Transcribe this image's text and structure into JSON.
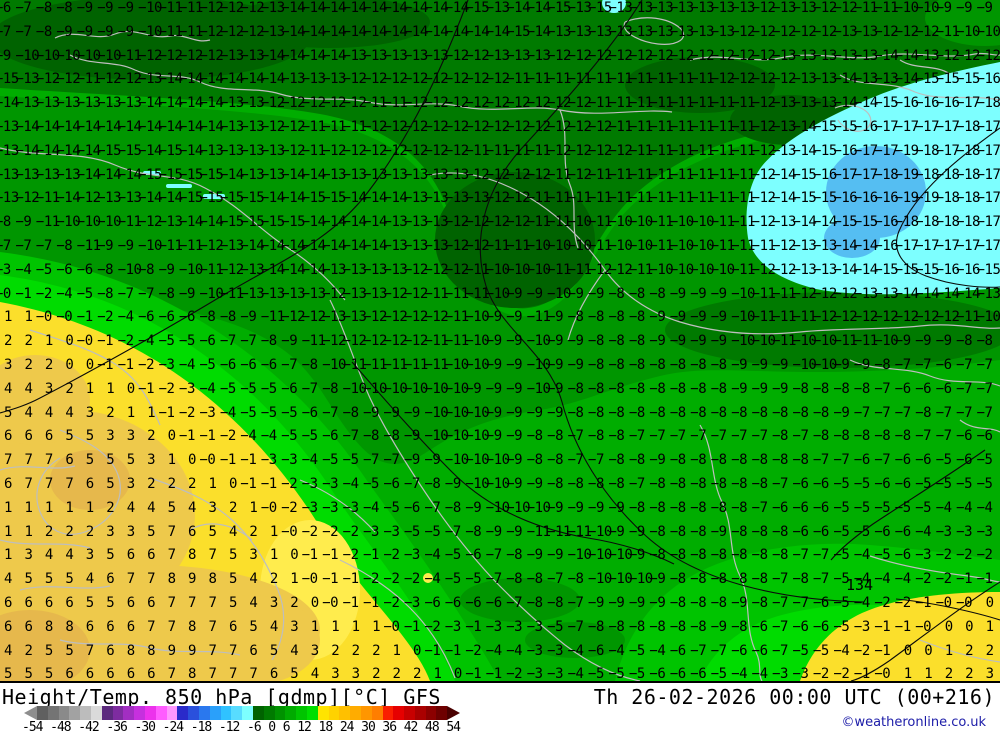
{
  "map": {
    "contour_label": "134",
    "palette": {
      "green_base": "#00AD00",
      "green_mid": "#009600",
      "green_dark": "#007A00",
      "green_darkest": "#006300",
      "green_bright": "#00C400",
      "green_brighter": "#00DC00",
      "yellow": "#FBDF2B",
      "yellow_bright": "#FFEC4D",
      "yellow_deep": "#EEC94B",
      "gold_deep": "#E6B84C",
      "cyan": "#7DFFFF",
      "blue_light": "#55BEF2",
      "border_gray": "#BEBEBE",
      "contour_black": "#0A0A0A"
    },
    "temperature_grid_rows": [
      "-6 -7 -8 -8 -9 -9 -9 -10 -11 -11 -12 -12 -12 -13 -14 -14 -14 -14 -14 -14 -14 -14 -14 -15 -13 -14 -14 -15 -13 -15 -13 -13 -13 -13 -13 -13 -13 -12 -13 -13 -12 -12 -11 -11 -10 -10 -9 -9 -9",
      "-7 -7 -8 -9 -9 -9 -9 -10 -11 -11 -12 -12 -12 -13 -14 -14 -14 -14 -14 -14 -14 -14 -14 -14 -14 -15 -14 -13 -13 -13 -13 -13 -13 -13 -13 -13 -12 -12 -12 -12 -12 -13 -13 -12 -12 -12 -11 -10 -10",
      "-9 -10 -10 -10 -10 -10 -11 -12 -12 -12 -12 -13 -13 -14 -14 -14 -14 -13 -13 -13 -13 -13 -12 -12 -13 -13 -13 -12 -12 -12 -12 -12 -12 -12 -12 -12 -12 -12 -13 -13 -13 -13 -13 -14 -14 -13 -12 -12 -12",
      "-15 -13 -12 -12 -11 -12 -12 -13 -14 -14 -14 -14 -14 -14 -13 -13 -13 -12 -12 -12 -12 -12 -12 -12 -12 -11 -11 -11 -11 -11 -11 -11 -11 -11 -11 -12 -12 -12 -12 -13 -13 -14 -13 -13 -14 -15 -15 -15 -16",
      "-14 -13 -13 -13 -13 -13 -13 -14 -14 -14 -14 -13 -13 -12 -12 -12 -12 -12 -11 -11 -12 -12 -12 -12 -12 -12 -12 -12 -12 -11 -11 -11 -11 -11 -11 -11 -11 -12 -13 -13 -13 -14 -14 -15 -16 -16 -16 -17 -18",
      "-13 -14 -14 -14 -14 -14 -14 -14 -14 -14 -14 -13 -13 -12 -12 -11 -11 -11 -12 -12 -12 -12 -12 -12 -12 -12 -12 -12 -12 -12 -11 -11 -11 -11 -11 -11 -11 -12 -13 -14 -15 -15 -16 -17 -17 -17 -17 -18 -17",
      "-13 -14 -14 -14 -14 -15 -15 -14 -15 -14 -13 -13 -13 -13 -12 -11 -12 -12 -12 -12 -12 -12 -12 -11 -11 -11 -11 -12 -12 -12 -12 -11 -11 -11 -11 -11 -11 -12 -13 -14 -15 -16 -17 -17 -19 -18 -17 -18 -17",
      "-13 -13 -13 -13 -14 -14 -14 -15 -15 -15 -15 -14 -13 -13 -14 -14 -13 -13 -13 -13 -13 -13 -13 -12 -12 -12 -12 -11 -12 -11 -11 -11 -11 -11 -11 -11 -11 -12 -14 -15 -16 -17 -17 -18 -19 -18 -18 -18 -17",
      "-13 -12 -11 -14 -12 -13 -13 -14 -14 -15 -15 -15 -15 -14 -14 -15 -15 -14 -14 -14 -13 -13 -13 -13 -12 -12 -11 -11 -11 -11 -11 -11 -11 -11 -11 -11 -11 -12 -14 -15 -15 -16 -16 -16 -19 -19 -18 -18 -17",
      "-8 -9 -11 -10 -10 -10 -11 -12 -13 -14 -14 -15 -15 -15 -15 -14 -14 -14 -14 -13 -13 -13 -12 -12 -12 -12 -11 -11 -10 -11 -10 -10 -11 -10 -10 -11 -11 -12 -13 -14 -14 -15 -15 -16 -18 -18 -18 -18 -17",
      "-7 -7 -7 -8 -11 -9 -9 -10 -11 -11 -12 -13 -14 -14 -14 -14 -14 -14 -14 -13 -13 -13 -12 -12 -11 -11 -10 -10 -10 -11 -10 -10 -11 -10 -10 -11 -11 -11 -12 -13 -13 -14 -14 -16 -17 -17 -17 -17 -17",
      "-3 -4 -5 -6 -6 -8 -10 -8 -9 -10 -11 -12 -13 -14 -14 -14 -13 -13 -13 -13 -12 -12 -12 -11 -10 -10 -10 -11 -11 -12 -12 -11 -10 -10 -10 -10 -11 -12 -12 -13 -13 -14 -14 -15 -15 -15 -16 -16 -15",
      "-0 -1 -2 -4 -5 -8 -7 -7 -8 -9 -10 -11 -13 -13 -13 -13 -12 -13 -13 -12 -12 -11 -11 -11 -10 -9 -9 -10 -9 -9 -8 -8 -8 -9 -9 -9 -10 -11 -11 -12 -12 -12 -13 -13 -14 -14 -14 -14 -13",
      "1 1 -0 -0 -1 -2 -4 -6 -6 -6 -8 -8 -9 -11 -12 -12 -13 -13 -12 -12 -12 -12 -11 -10 -9 -9 -11 -9 -8 -8 -8 -8 -9 -9 -9 -9 -10 -11 -11 -11 -12 -12 -12 -12 -12 -12 -12 -11 -10",
      "2 2 1 0 -0 -1 -2 -4 -5 -5 -6 -7 -7 -8 -9 -11 -12 -12 -12 -12 -12 -11 -11 -10 -9 -9 -10 -9 -9 -8 -8 -8 -9 -9 -9 -9 -10 -10 -11 -10 -10 -11 -11 -10 -9 -9 -9 -8 -8",
      "3 2 2 0 0 -1 -1 -2 -3 -4 -5 -6 -6 -6 -7 -8 -10 -11 -11 -11 -11 -11 -10 -10 -9 -9 -10 -9 -9 -8 -8 -8 -8 -8 -8 -8 -9 -9 -9 -10 -10 -9 -9 -8 -7 -7 -6 -7 -7",
      "4 4 3 2 1 1 0 -1 -2 -3 -4 -5 -5 -5 -6 -7 -8 -10 -10 -10 -10 -10 -10 -9 -9 -9 -10 -9 -8 -8 -8 -8 -8 -8 -8 -8 -9 -9 -9 -8 -8 -8 -8 -7 -6 -6 -6 -7 -7",
      "5 4 4 4 3 2 1 1 -1 -2 -3 -4 -5 -5 -5 -6 -7 -8 -9 -9 -9 -10 -10 -10 -9 -9 -9 -9 -8 -8 -8 -8 -8 -8 -8 -8 -8 -8 -8 -8 -8 -9 -7 -7 -7 -8 -7 -7 -7",
      "6 6 6 5 5 3 3 2 0 -1 -1 -2 -4 -4 -5 -5 -6 -7 -8 -8 -9 -10 -10 -10 -9 -9 -8 -8 -7 -8 -8 -7 -7 -7 -7 -7 -7 -7 -8 -7 -8 -8 -8 -8 -8 -7 -7 -6 -6",
      "7 7 7 6 5 5 5 3 1 0 -0 -1 -1 -3 -3 -4 -5 -5 -7 -7 -9 -9 -10 -10 -10 -9 -8 -8 -7 -7 -8 -8 -9 -8 -8 -8 -8 -8 -8 -8 -7 -7 -6 -7 -6 -6 -5 -6 -5",
      "6 7 7 7 6 5 3 2 2 2 1 0 -1 -1 -2 -3 -3 -4 -5 -6 -7 -8 -9 -10 -10 -9 -9 -8 -8 -8 -8 -7 -8 -8 -8 -8 -8 -8 -7 -6 -6 -5 -5 -6 -6 -5 -5 -5 -5",
      "1 1 1 1 1 2 4 4 5 4 3 2 1 -0 -2 -3 -3 -3 -4 -5 -6 -7 -8 -9 -10 -10 -10 -9 -9 -9 -9 -8 -8 -8 -8 -8 -8 -7 -6 -6 -6 -5 -5 -5 -5 -5 -4 -4 -4",
      "1 1 2 2 2 3 3 5 7 6 5 4 2 1 -0 -2 -2 -2 -3 -3 -5 -5 -7 -8 -9 -9 -11 -11 -11 -10 -9 -9 -8 -8 -8 -9 -8 -8 -8 -6 -6 -5 -5 -6 -6 -4 -3 -3 -3",
      "1 3 4 4 3 5 6 6 7 8 7 5 3 1 0 -1 -1 -2 -1 -2 -3 -4 -5 -6 -7 -8 -9 -9 -10 -10 -10 -9 -8 -8 -8 -8 -8 -8 -8 -7 -7 -5 -4 -5 -6 -3 -2 -2 -2",
      "4 5 5 5 4 6 7 7 8 9 8 5 4 2 1 -0 -1 -1 -2 -2 -2 -4 -5 -5 -7 -8 -8 -7 -8 -10 -10 -10 -9 -8 -8 -8 -8 -8 -7 -8 -7 -5 -4 -4 -4 -2 -2 -1 -1",
      "6 6 6 6 5 5 6 6 7 7 7 5 4 3 2 0 -0 -1 -1 -2 -3 -6 -6 -6 -6 -7 -8 -8 -7 -9 -9 -9 -9 -8 -8 -8 -9 -8 -7 -7 -6 -5 -4 -2 -2 -1 -0 -0 0",
      "6 6 8 8 6 6 6 7 7 8 7 6 5 4 3 1 1 1 1 -0 -1 -2 -3 -1 -3 -3 -3 -5 -7 -8 -8 -8 -8 -8 -8 -9 -8 -6 -7 -6 -6 -5 -3 -1 -1 -0 0 0 1",
      "4 2 5 5 7 6 8 8 9 9 7 7 6 5 4 3 2 2 2 1 0 -1 -1 -2 -4 -4 -3 -3 -4 -6 -4 -5 -4 -6 -7 -7 -6 -6 -7 -5 -5 -4 -2 -1 0 0 1 2 2",
      "5 5 5 6 6 6 6 6 7 8 7 7 7 6 5 4 3 3 2 2 2 1 0 -1 -1 -2 -3 -3 -4 -5 -5 -5 -6 -6 -6 -5 -4 -4 -3 -3 -2 -2 -1 -0 1 1 2 2 3"
    ]
  },
  "legend": {
    "title": "Height/Temp. 850 hPa [gdmp][°C] GFS",
    "datetime": "Th 26-02-2026 00:00 UTC (00+216)",
    "copyright": "©weatheronline.co.uk",
    "tick_labels": [
      "-54",
      "-48",
      "-42",
      "-36",
      "-30",
      "-24",
      "-18",
      "-12",
      "-6",
      "0",
      "6",
      "12",
      "18",
      "24",
      "30",
      "36",
      "42",
      "48",
      "54"
    ],
    "colorbar_colors": [
      "#606060",
      "#747474",
      "#8A8A8A",
      "#A2A2A2",
      "#BCBCBC",
      "#DADADA",
      "#5C2A7E",
      "#7E2CA0",
      "#A22EC2",
      "#C630DE",
      "#EC32EC",
      "#FF5CFF",
      "#FF96FF",
      "#2A2ACA",
      "#2A50DC",
      "#2A78EE",
      "#2AA0FA",
      "#30C2FF",
      "#58DCFF",
      "#7DFFFF",
      "#006300",
      "#007A00",
      "#009200",
      "#00AA00",
      "#00C400",
      "#00DE00",
      "#FFE400",
      "#FFD200",
      "#FFC000",
      "#FFAC00",
      "#FF9600",
      "#FF7E00",
      "#FA1E00",
      "#E60000",
      "#C80000",
      "#AA0000",
      "#8C0000",
      "#6E0000"
    ],
    "arrow_left_color": "#8E8E8E",
    "arrow_right_color": "#4A0000"
  }
}
